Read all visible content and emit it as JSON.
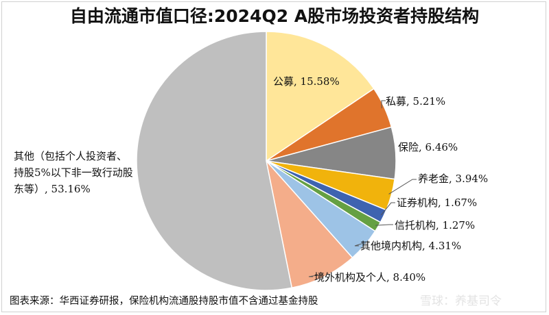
{
  "chart_data": {
    "type": "pie",
    "title": "自由流通市值口径:2024Q2 A股市场投资者持股结构",
    "slices": [
      {
        "name": "公募",
        "label": "公募, 15.58%",
        "value": 15.58,
        "color": "#FFE699"
      },
      {
        "name": "私募",
        "label": "私募, 5.21%",
        "value": 5.21,
        "color": "#E0742C"
      },
      {
        "name": "保险",
        "label": "保险, 6.46%",
        "value": 6.46,
        "color": "#868686"
      },
      {
        "name": "养老金",
        "label": "养老金, 3.94%",
        "value": 3.94,
        "color": "#F1B30C"
      },
      {
        "name": "证券机构",
        "label": "证券机构, 1.67%",
        "value": 1.67,
        "color": "#3E63B0"
      },
      {
        "name": "信托机构",
        "label": "信托机构, 1.27%",
        "value": 1.27,
        "color": "#65A043"
      },
      {
        "name": "其他境内机构",
        "label": "其他境内机构, 4.31%",
        "value": 4.31,
        "color": "#9DC3E6"
      },
      {
        "name": "境外机构及个人",
        "label": "境外机构及个人, 8.40%",
        "value": 8.4,
        "color": "#F4AD8A"
      },
      {
        "name": "其他（包括个人投资者、持股5%以下非一致行动股东等）",
        "label_lines": [
          "其他（包括个人投资者、",
          "持股5%以下非一致行动股",
          "东等）, 53.16%"
        ],
        "value": 53.16,
        "color": "#BFBFBF"
      }
    ]
  },
  "source": "图表来源：华西证券研报，保险机构流通股持股市值不含通过基金持股",
  "watermark": "雪球：养基司令"
}
